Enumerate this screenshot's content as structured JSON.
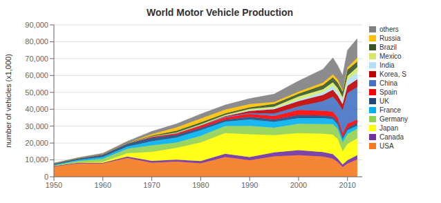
{
  "chart_data": {
    "type": "area",
    "stacked": true,
    "title": "World Motor Vehicle Production",
    "ylabel": "number of vehicles (x1,000)",
    "x": [
      1950,
      1955,
      1960,
      1965,
      1970,
      1975,
      1980,
      1985,
      1990,
      1995,
      2000,
      2005,
      2007,
      2008,
      2009,
      2010,
      2012
    ],
    "xlim": [
      1950,
      2013
    ],
    "xticks": [
      1950,
      1960,
      1970,
      1980,
      1990,
      2000,
      2010
    ],
    "ylim": [
      0,
      90000
    ],
    "yticks": [
      0,
      {
        "value": 10000,
        "label": "10,000"
      },
      {
        "value": 20000,
        "label": "20,000"
      },
      {
        "value": 30000,
        "label": "30,000"
      },
      {
        "value": 40000,
        "label": "40,000"
      },
      {
        "value": 50000,
        "label": "50,000"
      },
      {
        "value": 60000,
        "label": "60,000"
      },
      {
        "value": 70000,
        "label": "70,000"
      },
      {
        "value": 80000,
        "label": "80,000"
      },
      {
        "value": 90000,
        "label": "90,000"
      }
    ],
    "grid": true,
    "legend": "right",
    "series": [
      {
        "name": "USA",
        "color": "#f47920",
        "values": [
          6006,
          7920,
          7905,
          11138,
          8284,
          8987,
          8010,
          11653,
          9783,
          12040,
          12800,
          11947,
          10781,
          8673,
          5731,
          7762,
          10328
        ]
      },
      {
        "name": "Canada",
        "color": "#7030a0",
        "values": [
          388,
          452,
          396,
          846,
          1160,
          1145,
          1324,
          1933,
          1922,
          2408,
          2962,
          2688,
          2578,
          2078,
          1490,
          2071,
          2464
        ]
      },
      {
        "name": "Japan",
        "color": "#ffff00",
        "values": [
          32,
          69,
          482,
          1876,
          5289,
          6942,
          11043,
          12271,
          13487,
          10196,
          10141,
          10800,
          11596,
          11576,
          7934,
          9626,
          9943
        ]
      },
      {
        "name": "Germany",
        "color": "#92d050",
        "values": [
          306,
          909,
          1817,
          2734,
          3842,
          3186,
          3878,
          4167,
          4977,
          4360,
          5527,
          5757,
          6213,
          6041,
          5209,
          5906,
          5649
        ]
      },
      {
        "name": "France",
        "color": "#00b0f0",
        "values": [
          357,
          724,
          1175,
          1338,
          2458,
          2929,
          3378,
          2632,
          3769,
          3475,
          3348,
          3549,
          3016,
          2568,
          2048,
          2227,
          1967
        ]
      },
      {
        "name": "UK",
        "color": "#1f497d",
        "values": [
          784,
          898,
          1353,
          1722,
          2099,
          1648,
          1313,
          1048,
          1566,
          1526,
          1814,
          1596,
          1535,
          1446,
          1090,
          1393,
          1577
        ]
      },
      {
        "name": "Spain",
        "color": "#ff0000",
        "values": [
          0,
          0,
          42,
          100,
          445,
          777,
          1182,
          1418,
          1679,
          1959,
          3033,
          2752,
          2889,
          2541,
          2170,
          2388,
          1979
        ]
      },
      {
        "name": "China",
        "color": "#4472c4",
        "values": [
          0,
          0,
          0,
          0,
          100,
          140,
          222,
          443,
          509,
          1453,
          2069,
          5708,
          8882,
          9299,
          13791,
          18265,
          19272
        ]
      },
      {
        "name": "Korea, S",
        "color": "#c00000",
        "values": [
          0,
          0,
          0,
          0,
          28,
          37,
          123,
          378,
          1322,
          2526,
          3115,
          3699,
          4086,
          3827,
          3513,
          4272,
          4558
        ]
      },
      {
        "name": "India",
        "color": "#b3e0f7",
        "values": [
          0,
          0,
          0,
          0,
          39,
          77,
          113,
          180,
          364,
          694,
          801,
          1641,
          2306,
          2316,
          2641,
          3557,
          4175
        ]
      },
      {
        "name": "Mexico",
        "color": "#d4e96b",
        "values": [
          0,
          0,
          50,
          97,
          189,
          357,
          490,
          460,
          820,
          936,
          1935,
          1684,
          2096,
          2191,
          1561,
          2345,
          3001
        ]
      },
      {
        "name": "Brazil",
        "color": "#375623",
        "values": [
          0,
          0,
          133,
          235,
          416,
          930,
          1165,
          966,
          914,
          1629,
          1682,
          2529,
          2980,
          3215,
          3183,
          3648,
          3343
        ]
      },
      {
        "name": "Russia",
        "color": "#ffc000",
        "values": [
          0,
          0,
          0,
          0,
          916,
          1964,
          2199,
          2228,
          1908,
          1046,
          1206,
          1354,
          1660,
          1791,
          726,
          1404,
          2231
        ]
      },
      {
        "name": "others",
        "color": "#808080",
        "values": [
          127,
          378,
          577,
          918,
          1620,
          2178,
          2730,
          2721,
          3281,
          4698,
          6367,
          8046,
          9858,
          8342,
          8912,
          10116,
          11403
        ]
      }
    ]
  }
}
